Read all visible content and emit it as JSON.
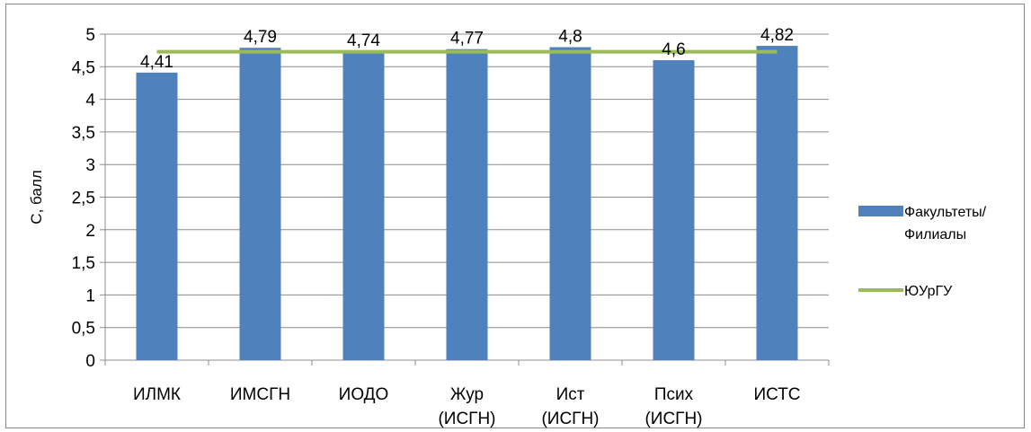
{
  "chart_data": {
    "type": "bar",
    "categories": [
      [
        "ИЛМК"
      ],
      [
        "ИМСГН"
      ],
      [
        "ИОДО"
      ],
      [
        "Жур",
        "(ИСГН)"
      ],
      [
        "Ист",
        "(ИСГН)"
      ],
      [
        "Псих",
        "(ИСГН)"
      ],
      [
        "ИСТС"
      ]
    ],
    "series": [
      {
        "name": "Факультеты/ Филиалы",
        "kind": "bar",
        "color": "#4F81BD",
        "values": [
          4.41,
          4.79,
          4.74,
          4.77,
          4.8,
          4.6,
          4.82
        ],
        "value_labels": [
          "4,41",
          "4,79",
          "4,74",
          "4,77",
          "4,8",
          "4,6",
          "4,82"
        ]
      },
      {
        "name": "ЮУрГУ",
        "kind": "line",
        "color": "#9BBB59",
        "values": [
          4.73,
          4.73,
          4.73,
          4.73,
          4.73,
          4.73,
          4.73
        ]
      }
    ],
    "ylabel": "С, балл",
    "ylim": [
      0,
      5
    ],
    "yticks": [
      0,
      0.5,
      1,
      1.5,
      2,
      2.5,
      3,
      3.5,
      4,
      4.5,
      5
    ],
    "ytick_labels": [
      "0",
      "0,5",
      "1",
      "1,5",
      "2",
      "2,5",
      "3",
      "3,5",
      "4",
      "4,5",
      "5"
    ],
    "grid": true,
    "legend": {
      "position": "right",
      "entries": [
        {
          "lines": [
            "Факультеты/",
            "Филиалы"
          ],
          "marker": "rect",
          "color": "#4F81BD"
        },
        {
          "lines": [
            "ЮУрГУ"
          ],
          "marker": "line",
          "color": "#9BBB59"
        }
      ]
    }
  }
}
